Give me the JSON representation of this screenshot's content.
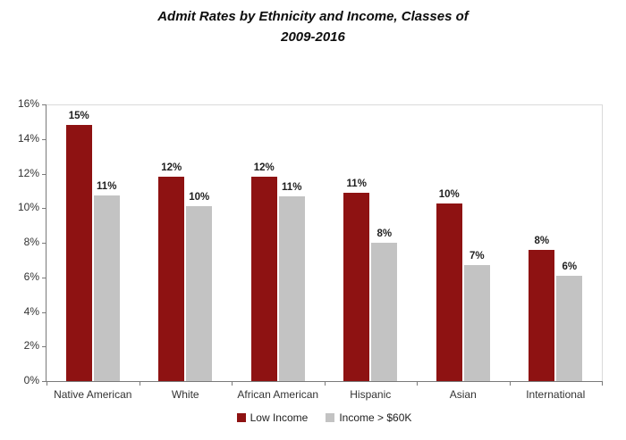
{
  "header": {
    "title_line1": "Admit Rates by Ethnicity and Income, Classes of",
    "title_line2": "2009-2016"
  },
  "chart_data": {
    "type": "bar",
    "title": "Admit Rates by Ethnicity and Income, Classes of 2009-2016",
    "categories": [
      "Native American",
      "White",
      "African American",
      "Hispanic",
      "Asian",
      "International"
    ],
    "series": [
      {
        "name": "Low Income",
        "color": "#8e1212",
        "values": [
          15,
          12,
          12,
          11,
          10,
          8
        ],
        "labels": [
          "15%",
          "12%",
          "12%",
          "11%",
          "10%",
          "8%"
        ],
        "bar_heights_pct": [
          14.8,
          11.8,
          11.8,
          10.9,
          10.25,
          7.6
        ]
      },
      {
        "name": "Income > $60K",
        "color": "#c3c3c3",
        "values": [
          11,
          10,
          11,
          8,
          7,
          6
        ],
        "labels": [
          "11%",
          "10%",
          "11%",
          "8%",
          "7%",
          "6%"
        ],
        "bar_heights_pct": [
          10.75,
          10.1,
          10.7,
          8.0,
          6.7,
          6.1
        ]
      }
    ],
    "xlabel": "",
    "ylabel": "",
    "ylim": [
      0,
      16
    ],
    "ytick_step": 2,
    "ytick_labels": [
      "0%",
      "2%",
      "4%",
      "6%",
      "8%",
      "10%",
      "12%",
      "14%",
      "16%"
    ],
    "grid": false,
    "legend_position": "bottom",
    "colors": {
      "axis": "#7a7a7a",
      "plot_border": "#dadada",
      "background": "#ffffff"
    }
  }
}
